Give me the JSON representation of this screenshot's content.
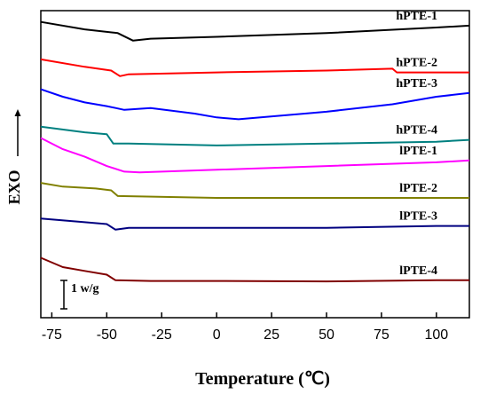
{
  "chart_data": {
    "type": "line",
    "xlabel": "Temperature (℃)",
    "ylabel": "EXO",
    "xlim": [
      -80,
      115
    ],
    "xticks": [
      -75,
      -50,
      -25,
      0,
      25,
      50,
      75,
      100
    ],
    "xtick_labels": [
      "-75",
      "-50",
      "-25",
      "0",
      "25",
      "50",
      "75",
      "100"
    ],
    "y_ticks_shown": false,
    "grid": false,
    "scale_bar": {
      "label": "1 w/g"
    },
    "series": [
      {
        "name": "hPTE-1",
        "color": "#000000",
        "x": [
          -80,
          -60,
          -45,
          -38,
          -30,
          0,
          50,
          100,
          115
        ],
        "y": [
          6.3,
          6.1,
          6.0,
          5.8,
          5.85,
          5.9,
          6.0,
          6.15,
          6.2
        ]
      },
      {
        "name": "hPTE-2",
        "color": "#ff0000",
        "x": [
          -80,
          -60,
          -48,
          -44,
          -40,
          0,
          50,
          80,
          82,
          100,
          115
        ],
        "y": [
          5.3,
          5.1,
          5.0,
          4.85,
          4.9,
          4.95,
          5.0,
          5.05,
          4.95,
          4.95,
          4.95
        ]
      },
      {
        "name": "hPTE-3",
        "color": "#0000ff",
        "x": [
          -80,
          -70,
          -60,
          -50,
          -42,
          -30,
          -10,
          0,
          10,
          20,
          50,
          80,
          100,
          115
        ],
        "y": [
          4.5,
          4.3,
          4.15,
          4.05,
          3.95,
          4.0,
          3.85,
          3.75,
          3.7,
          3.75,
          3.9,
          4.1,
          4.3,
          4.4
        ]
      },
      {
        "name": "hPTE-4",
        "color": "#008080",
        "x": [
          -80,
          -60,
          -50,
          -47,
          -40,
          0,
          50,
          100,
          115
        ],
        "y": [
          3.5,
          3.35,
          3.3,
          3.05,
          3.05,
          3.0,
          3.05,
          3.1,
          3.15
        ]
      },
      {
        "name": "lPTE-1",
        "color": "#ff00ff",
        "x": [
          -80,
          -70,
          -60,
          -50,
          -42,
          -35,
          0,
          50,
          100,
          115
        ],
        "y": [
          3.2,
          2.9,
          2.7,
          2.45,
          2.3,
          2.28,
          2.35,
          2.45,
          2.55,
          2.6
        ]
      },
      {
        "name": "lPTE-2",
        "color": "#808000",
        "x": [
          -80,
          -70,
          -55,
          -48,
          -45,
          0,
          50,
          100,
          115
        ],
        "y": [
          2.0,
          1.9,
          1.85,
          1.8,
          1.65,
          1.6,
          1.6,
          1.6,
          1.6
        ]
      },
      {
        "name": "lPTE-3",
        "color": "#000080",
        "x": [
          -80,
          -60,
          -50,
          -46,
          -40,
          0,
          50,
          100,
          115
        ],
        "y": [
          1.05,
          0.95,
          0.9,
          0.75,
          0.8,
          0.8,
          0.8,
          0.85,
          0.85
        ]
      },
      {
        "name": "lPTE-4",
        "color": "#800000",
        "x": [
          -80,
          -70,
          -60,
          -50,
          -46,
          -30,
          0,
          50,
          100,
          115
        ],
        "y": [
          0.0,
          -0.25,
          -0.35,
          -0.45,
          -0.6,
          -0.62,
          -0.62,
          -0.63,
          -0.6,
          -0.6
        ]
      }
    ]
  }
}
